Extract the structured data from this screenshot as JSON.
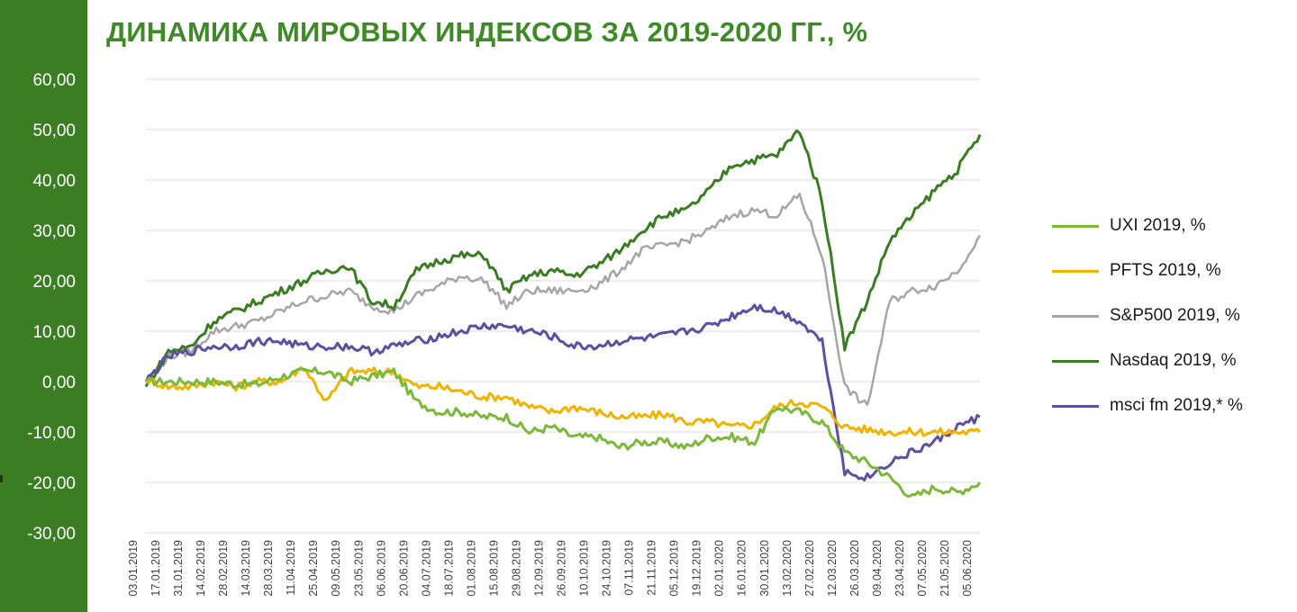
{
  "chart_data": {
    "type": "line",
    "title": "ДИНАМИКА МИРОВЫХ ИНДЕКСОВ ЗА 2019-2020 ГГ., %",
    "ylim": [
      -30,
      60
    ],
    "yticks": [
      "60,00",
      "50,00",
      "40,00",
      "30,00",
      "20,00",
      "10,00",
      "0,00",
      "-10,00",
      "-20,00",
      "-30,00"
    ],
    "grid": true,
    "legend_position": "right",
    "x_labels": [
      "03.01.2019",
      "17.01.2019",
      "31.01.2019",
      "14.02.2019",
      "28.02.2019",
      "14.03.2019",
      "28.03.2019",
      "11.04.2019",
      "25.04.2019",
      "09.05.2019",
      "23.05.2019",
      "06.06.2019",
      "20.06.2019",
      "04.07.2019",
      "18.07.2019",
      "01.08.2019",
      "15.08.2019",
      "29.08.2019",
      "12.09.2019",
      "26.09.2019",
      "10.10.2019",
      "24.10.2019",
      "07.11.2019",
      "21.11.2019",
      "05.12.2019",
      "19.12.2019",
      "02.01.2020",
      "16.01.2020",
      "30.01.2020",
      "13.02.2020",
      "27.02.2020",
      "12.03.2020",
      "26.03.2020",
      "09.04.2020",
      "23.04.2020",
      "07.05.2020",
      "21.05.2020",
      "05.06.2020"
    ],
    "series": [
      {
        "name": "UXI 2019, %",
        "color": "#7cb83a",
        "width": 3,
        "values": [
          0,
          0,
          0,
          0,
          -0.5,
          -0.5,
          1,
          2,
          2,
          0,
          1,
          2,
          -4,
          -6,
          -6,
          -7,
          -7,
          -10,
          -9,
          -11,
          -11,
          -13,
          -12,
          -12,
          -13,
          -11,
          -11,
          -12,
          -5,
          -6,
          -8,
          -14,
          -16,
          -19,
          -23,
          -21,
          -22,
          -20
        ]
      },
      {
        "name": "PFTS 2019, %",
        "color": "#f0b400",
        "width": 3,
        "values": [
          0.5,
          -1,
          -1,
          0,
          -1,
          0,
          0,
          3,
          -4,
          2,
          2,
          2,
          -1,
          -1,
          -2,
          -3,
          -3,
          -5,
          -6,
          -5,
          -6,
          -7,
          -7,
          -6.5,
          -8,
          -8,
          -9,
          -8.5,
          -5,
          -4,
          -5,
          -9,
          -9.5,
          -10,
          -10,
          -10,
          -10,
          -10
        ]
      },
      {
        "name": "S&P500 2019, %",
        "color": "#a6a6a6",
        "width": 2.5,
        "values": [
          0,
          5,
          6,
          10,
          11,
          12,
          14,
          16,
          17,
          18,
          15,
          14,
          17,
          19,
          21,
          20,
          15,
          18,
          18,
          18,
          19,
          22,
          26,
          27,
          28,
          30,
          33,
          34,
          33,
          37,
          25,
          -1,
          -5,
          16,
          18,
          19,
          22,
          29
        ]
      },
      {
        "name": "Nasdaq 2019, %",
        "color": "#3a7d22",
        "width": 3,
        "values": [
          -1,
          6,
          7,
          12,
          14,
          16,
          18,
          20,
          22,
          23,
          16,
          15,
          22,
          24,
          25,
          25,
          18,
          21,
          22,
          21,
          23,
          26,
          30,
          33,
          34,
          38,
          43,
          44,
          45,
          50,
          36,
          7,
          16,
          28,
          33,
          38,
          42,
          49
        ]
      },
      {
        "name": "msci fm 2019,* %",
        "color": "#5e4fa2",
        "width": 3,
        "values": [
          0,
          5,
          6,
          7,
          7,
          8,
          8,
          7,
          7,
          7,
          6,
          7,
          8,
          9,
          10,
          11,
          11,
          10,
          9,
          7,
          7,
          8,
          8.5,
          9,
          10,
          11,
          13,
          15,
          14,
          12,
          8,
          -18,
          -19,
          -16,
          -14,
          -12,
          -9,
          -7
        ]
      }
    ]
  }
}
